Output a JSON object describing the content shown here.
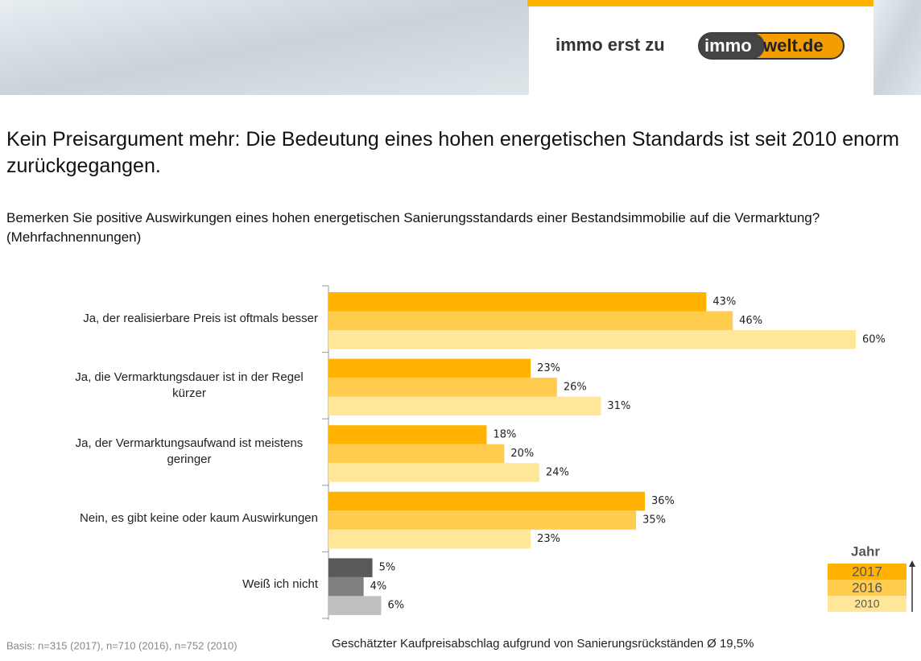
{
  "header": {
    "slogan": "immo erst zu",
    "logo_part1": "immo",
    "logo_part2": "welt.de"
  },
  "chart_data": {
    "type": "bar",
    "orientation": "horizontal",
    "title": "Kein Preisargument mehr: Die Bedeutung eines hohen energetischen Standards ist seit 2010 enorm zurückgegangen.",
    "subtitle": "Bemerken Sie positive Auswirkungen eines hohen energetischen Sanierungsstandards einer Bestandsimmobilie auf die Vermarktung? (Mehrfachnennungen)",
    "categories": [
      "Ja, der realisierbare Preis ist oftmals besser",
      "Ja, die Vermarktungsdauer ist in der Regel kürzer",
      "Ja, der Vermarktungsaufwand ist meistens geringer",
      "Nein, es gibt keine oder kaum Auswirkungen",
      "Weiß ich nicht"
    ],
    "series": [
      {
        "name": "2017",
        "color": "#FFB300",
        "colors": [
          "#FFB300",
          "#FFB300",
          "#FFB300",
          "#FFB300",
          "#595959"
        ],
        "values": [
          43,
          23,
          18,
          36,
          5
        ],
        "value_labels": [
          "43%",
          "23%",
          "18%",
          "36%",
          "5%"
        ]
      },
      {
        "name": "2016",
        "color": "#FFCC4D",
        "colors": [
          "#FFCC4D",
          "#FFCC4D",
          "#FFCC4D",
          "#FFCC4D",
          "#808080"
        ],
        "values": [
          46,
          26,
          20,
          35,
          4
        ],
        "value_labels": [
          "46%",
          "26%",
          "20%",
          "35%",
          "4%"
        ]
      },
      {
        "name": "2010",
        "color": "#FFE699",
        "colors": [
          "#FFE699",
          "#FFE699",
          "#FFE699",
          "#FFE699",
          "#BFBFBF"
        ],
        "values": [
          60,
          31,
          24,
          23,
          6
        ],
        "value_labels": [
          "60%",
          "31%",
          "24%",
          "23%",
          "6%"
        ]
      }
    ],
    "xlim": [
      0,
      60
    ],
    "legend": {
      "title": "Jahr",
      "position": "lower right"
    },
    "footnote": "Basis: n=315 (2017), n=710 (2016), n=752 (2010)",
    "annotation": "Geschätzter Kaufpreisabschlag aufgrund von Sanierungsrückständen Ø 19,5%"
  }
}
